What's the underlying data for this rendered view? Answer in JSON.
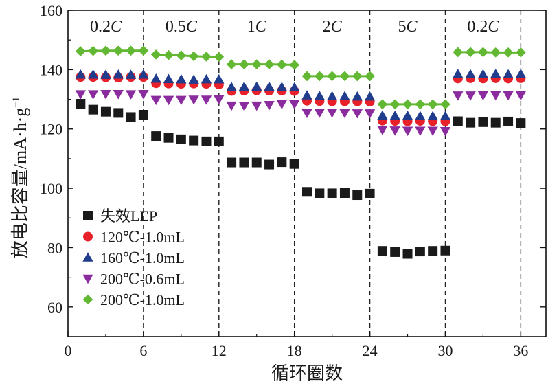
{
  "chart_data": {
    "type": "scatter",
    "title": "",
    "xlabel": "循环圈数",
    "ylabel": "放电比容量/mA·h·g",
    "ylabel_sup": "−1",
    "xlim": [
      0,
      38
    ],
    "ylim": [
      50,
      160
    ],
    "x_ticks": [
      0,
      6,
      12,
      18,
      24,
      30,
      36
    ],
    "x_tick_labels": [
      "0",
      "6",
      "12",
      "18",
      "24",
      "30",
      "36"
    ],
    "y_ticks": [
      60,
      80,
      100,
      120,
      140,
      160
    ],
    "y_tick_labels": [
      "60",
      "80",
      "100",
      "120",
      "140",
      "160"
    ],
    "rate_boundaries": [
      6,
      12,
      18,
      24,
      30,
      36
    ],
    "rate_labels": [
      {
        "num": "0.2",
        "unit": "C",
        "x": 3
      },
      {
        "num": "0.5",
        "unit": "C",
        "x": 9
      },
      {
        "num": "1",
        "unit": "C",
        "x": 15
      },
      {
        "num": "2",
        "unit": "C",
        "x": 21
      },
      {
        "num": "5",
        "unit": "C",
        "x": 27
      },
      {
        "num": "0.2",
        "unit": "C",
        "x": 33
      }
    ],
    "legend_position": "lower-left",
    "series": [
      {
        "name": "失效LEP",
        "marker": "square",
        "color": "#1a1a1a",
        "connect": false,
        "x": [
          1,
          2,
          3,
          4,
          5,
          6,
          7,
          8,
          9,
          10,
          11,
          12,
          13,
          14,
          15,
          16,
          17,
          18,
          19,
          20,
          21,
          22,
          23,
          24,
          25,
          26,
          27,
          28,
          29,
          30,
          31,
          32,
          33,
          34,
          35,
          36
        ],
        "values": [
          128.5,
          126.5,
          125.8,
          125.4,
          124.0,
          124.8,
          117.6,
          117.0,
          116.5,
          116.1,
          115.8,
          115.8,
          108.7,
          108.7,
          108.7,
          108.0,
          108.8,
          108.2,
          98.8,
          98.3,
          98.3,
          98.4,
          97.7,
          98.2,
          78.9,
          78.5,
          77.9,
          78.7,
          78.9,
          79.0,
          122.6,
          122.1,
          122.3,
          122.1,
          122.5,
          122.0
        ]
      },
      {
        "name": "120℃-1.0mL",
        "marker": "circle",
        "color": "#e8202a",
        "connect": false,
        "x": [
          1,
          2,
          3,
          4,
          5,
          6,
          7,
          8,
          9,
          10,
          11,
          12,
          13,
          14,
          15,
          16,
          17,
          18,
          19,
          20,
          21,
          22,
          23,
          24,
          25,
          26,
          27,
          28,
          29,
          30,
          31,
          32,
          33,
          34,
          35,
          36
        ],
        "values": [
          137.5,
          137.5,
          137.4,
          137.3,
          137.5,
          137.5,
          135.4,
          135.3,
          135.2,
          135.3,
          135.2,
          135.0,
          132.8,
          132.9,
          133.0,
          132.9,
          132.9,
          132.8,
          129.5,
          129.4,
          129.3,
          129.3,
          129.3,
          129.2,
          122.8,
          122.7,
          122.6,
          122.7,
          122.6,
          122.6,
          137.0,
          137.1,
          137.0,
          137.1,
          137.0,
          137.1
        ]
      },
      {
        "name": "160℃-1.0mL",
        "marker": "triangle-up",
        "color": "#1f3d8c",
        "connect": false,
        "x": [
          1,
          2,
          3,
          4,
          5,
          6,
          7,
          8,
          9,
          10,
          11,
          12,
          13,
          14,
          15,
          16,
          17,
          18,
          19,
          20,
          21,
          22,
          23,
          24,
          25,
          26,
          27,
          28,
          29,
          30,
          31,
          32,
          33,
          34,
          35,
          36
        ],
        "values": [
          138.3,
          138.3,
          138.2,
          138.3,
          138.2,
          138.3,
          136.9,
          136.8,
          136.7,
          136.6,
          136.7,
          136.7,
          134.1,
          134.2,
          134.2,
          134.2,
          134.1,
          134.0,
          131.3,
          131.1,
          131.0,
          131.0,
          130.9,
          130.9,
          124.5,
          124.4,
          124.4,
          124.3,
          124.3,
          124.3,
          138.5,
          138.4,
          138.4,
          138.5,
          138.4,
          138.5
        ]
      },
      {
        "name": "200℃-0.6mL",
        "marker": "triangle-down",
        "color": "#8a2b9e",
        "connect": false,
        "x": [
          1,
          2,
          3,
          4,
          5,
          6,
          7,
          8,
          9,
          10,
          11,
          12,
          13,
          14,
          15,
          16,
          17,
          18,
          19,
          20,
          21,
          22,
          23,
          24,
          25,
          26,
          27,
          28,
          29,
          30,
          31,
          32,
          33,
          34,
          35,
          36
        ],
        "values": [
          131.7,
          131.7,
          131.8,
          131.8,
          131.7,
          131.8,
          129.8,
          129.8,
          129.8,
          129.9,
          129.9,
          130.0,
          127.9,
          127.8,
          127.9,
          128.1,
          128.4,
          128.4,
          125.4,
          125.5,
          125.5,
          125.4,
          125.3,
          125.3,
          119.7,
          119.5,
          119.4,
          119.4,
          119.4,
          119.3,
          131.3,
          131.3,
          131.4,
          131.4,
          131.4,
          131.4
        ]
      },
      {
        "name": "200℃-1.0mL",
        "marker": "diamond",
        "color": "#62b832",
        "connect": true,
        "x": [
          1,
          2,
          3,
          4,
          5,
          6,
          7,
          8,
          9,
          10,
          11,
          12,
          13,
          14,
          15,
          16,
          17,
          18,
          19,
          20,
          21,
          22,
          23,
          24,
          25,
          26,
          27,
          28,
          29,
          30,
          31,
          32,
          33,
          34,
          35,
          36
        ],
        "values": [
          146.2,
          146.3,
          146.4,
          146.4,
          146.4,
          146.4,
          145.1,
          144.9,
          144.8,
          144.5,
          144.4,
          144.3,
          141.8,
          141.8,
          141.8,
          141.8,
          141.7,
          141.6,
          137.8,
          137.8,
          137.8,
          137.8,
          137.8,
          137.8,
          128.3,
          128.3,
          128.3,
          128.3,
          128.3,
          128.3,
          145.9,
          145.9,
          145.9,
          145.8,
          145.8,
          145.8
        ]
      }
    ]
  }
}
